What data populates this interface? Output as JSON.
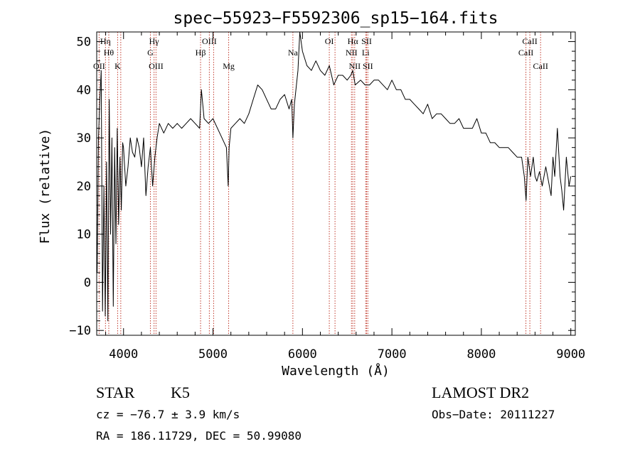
{
  "chart_data": {
    "type": "line",
    "title": "spec−55923−F5592306_sp15−164.fits",
    "xlabel": "Wavelength (Å)",
    "ylabel": "Flux (relative)",
    "xlim": [
      3700,
      9050
    ],
    "ylim": [
      -11,
      52
    ],
    "xticks": [
      {
        "v": 4000,
        "label": "4000"
      },
      {
        "v": 5000,
        "label": "5000"
      },
      {
        "v": 6000,
        "label": "6000"
      },
      {
        "v": 7000,
        "label": "7000"
      },
      {
        "v": 8000,
        "label": "8000"
      },
      {
        "v": 9000,
        "label": "9000"
      }
    ],
    "yticks": [
      {
        "v": -10,
        "label": "−10"
      },
      {
        "v": 0,
        "label": "0"
      },
      {
        "v": 10,
        "label": "10"
      },
      {
        "v": 20,
        "label": "20"
      },
      {
        "v": 30,
        "label": "30"
      },
      {
        "v": 40,
        "label": "40"
      },
      {
        "v": 50,
        "label": "50"
      }
    ],
    "line_color": "#000000",
    "marker_color": "#c0392b",
    "lines": [
      {
        "wave": 3727,
        "label": "OII",
        "row": 3
      },
      {
        "wave": 3798,
        "label": "Hη",
        "row": 1
      },
      {
        "wave": 3835,
        "label": "Hθ",
        "row": 2
      },
      {
        "wave": 3934,
        "label": "K",
        "row": 3
      },
      {
        "wave": 3969,
        "label": "",
        "row": 0
      },
      {
        "wave": 4300,
        "label": "G",
        "row": 2
      },
      {
        "wave": 4341,
        "label": "Hγ",
        "row": 1
      },
      {
        "wave": 4363,
        "label": "OIII",
        "row": 3
      },
      {
        "wave": 4861,
        "label": "Hβ",
        "row": 2
      },
      {
        "wave": 4959,
        "label": "OIII",
        "row": 1
      },
      {
        "wave": 5007,
        "label": "",
        "row": 0
      },
      {
        "wave": 5175,
        "label": "Mg",
        "row": 3
      },
      {
        "wave": 5893,
        "label": "Na",
        "row": 2
      },
      {
        "wave": 6300,
        "label": "OI",
        "row": 1
      },
      {
        "wave": 6364,
        "label": "",
        "row": 0
      },
      {
        "wave": 6548,
        "label": "NII",
        "row": 2
      },
      {
        "wave": 6563,
        "label": "Hα",
        "row": 1
      },
      {
        "wave": 6584,
        "label": "NII",
        "row": 3
      },
      {
        "wave": 6707,
        "label": "Li",
        "row": 2
      },
      {
        "wave": 6717,
        "label": "SII",
        "row": 1
      },
      {
        "wave": 6731,
        "label": "SII",
        "row": 3
      },
      {
        "wave": 8498,
        "label": "CaII",
        "row": 2
      },
      {
        "wave": 8542,
        "label": "CaII",
        "row": 1
      },
      {
        "wave": 8662,
        "label": "CaII",
        "row": 3
      }
    ],
    "series": [
      {
        "x": [
          3705,
          3720,
          3735,
          3750,
          3765,
          3780,
          3795,
          3810,
          3825,
          3840,
          3855,
          3870,
          3885,
          3900,
          3915,
          3930,
          3945,
          3960,
          3975,
          3990,
          4000,
          4025,
          4050,
          4075,
          4100,
          4125,
          4150,
          4175,
          4200,
          4225,
          4250,
          4275,
          4300,
          4325,
          4350,
          4375,
          4400,
          4450,
          4500,
          4550,
          4600,
          4650,
          4700,
          4750,
          4800,
          4850,
          4870,
          4900,
          4950,
          5000,
          5050,
          5100,
          5150,
          5170,
          5180,
          5200,
          5250,
          5300,
          5350,
          5400,
          5450,
          5500,
          5550,
          5600,
          5650,
          5700,
          5750,
          5800,
          5850,
          5880,
          5893,
          5910,
          5950,
          5970,
          6000,
          6050,
          6100,
          6150,
          6200,
          6250,
          6300,
          6350,
          6400,
          6450,
          6500,
          6540,
          6563,
          6590,
          6650,
          6700,
          6750,
          6800,
          6850,
          6900,
          6950,
          7000,
          7050,
          7100,
          7150,
          7200,
          7250,
          7300,
          7350,
          7400,
          7450,
          7500,
          7550,
          7600,
          7650,
          7700,
          7750,
          7800,
          7850,
          7900,
          7950,
          8000,
          8050,
          8100,
          8150,
          8200,
          8250,
          8300,
          8350,
          8400,
          8450,
          8480,
          8500,
          8520,
          8550,
          8580,
          8600,
          8620,
          8650,
          8680,
          8700,
          8720,
          8750,
          8780,
          8800,
          8820,
          8850,
          8880,
          8900,
          8920,
          8950,
          8980,
          9000
        ],
        "y": [
          2,
          30,
          38,
          44,
          -6,
          20,
          -7,
          25,
          -8,
          38,
          10,
          30,
          -5,
          28,
          8,
          32,
          12,
          26,
          15,
          29,
          28,
          20,
          24,
          30,
          27,
          26,
          30,
          28,
          24,
          30,
          18,
          24,
          28,
          20,
          26,
          30,
          33,
          31,
          33,
          32,
          33,
          32,
          33,
          34,
          33,
          32,
          40,
          34,
          33,
          34,
          32,
          30,
          28,
          20,
          28,
          32,
          33,
          34,
          33,
          35,
          38,
          41,
          40,
          38,
          36,
          36,
          38,
          39,
          36,
          38,
          30,
          37,
          44,
          53,
          48,
          45,
          44,
          46,
          44,
          43,
          45,
          41,
          43,
          43,
          42,
          43,
          44,
          41,
          42,
          41,
          41,
          42,
          42,
          41,
          40,
          42,
          40,
          40,
          38,
          38,
          37,
          36,
          35,
          37,
          34,
          35,
          35,
          34,
          33,
          33,
          34,
          32,
          32,
          32,
          34,
          31,
          31,
          29,
          29,
          28,
          28,
          28,
          27,
          26,
          26,
          22,
          17,
          26,
          22,
          26,
          22,
          21,
          23,
          20,
          22,
          24,
          21,
          18,
          26,
          22,
          32,
          22,
          19,
          15,
          26,
          20,
          22
        ]
      }
    ]
  },
  "info": {
    "object_class": "STAR",
    "subclass": "K5",
    "survey": "LAMOST DR2",
    "cz": "cz = −76.7 ± 3.9 km/s",
    "obs_date": "Obs−Date: 20111227",
    "coords": "RA = 186.11729, DEC =  50.99080"
  }
}
